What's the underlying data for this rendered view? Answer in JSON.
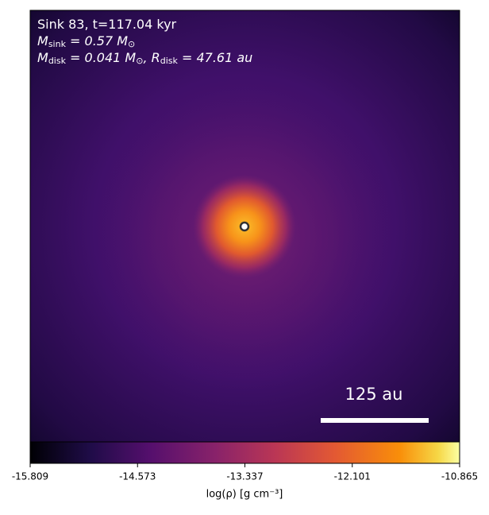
{
  "chart_data": {
    "type": "heatmap",
    "annotation_lines": [
      [
        {
          "t": "Sink 83, t=117.04 kyr"
        }
      ],
      [
        {
          "t": "M"
        },
        {
          "sub": "sink"
        },
        {
          "t": " = 0.57 M"
        },
        {
          "sub": "⊙"
        }
      ],
      [
        {
          "t": "M"
        },
        {
          "sub": "disk"
        },
        {
          "t": " = 0.041 M"
        },
        {
          "sub": "⊙"
        },
        {
          "t": ", R"
        },
        {
          "sub": "disk"
        },
        {
          "t": " = 47.61 au"
        }
      ]
    ],
    "scale_bar_label": "125 au",
    "colorbar": {
      "label": "log(ρ) [g cm⁻³]",
      "xlim": [
        -15.809,
        -10.865
      ],
      "xticks": [
        -15.809,
        -14.573,
        -13.337,
        -12.101,
        -10.865
      ]
    }
  }
}
